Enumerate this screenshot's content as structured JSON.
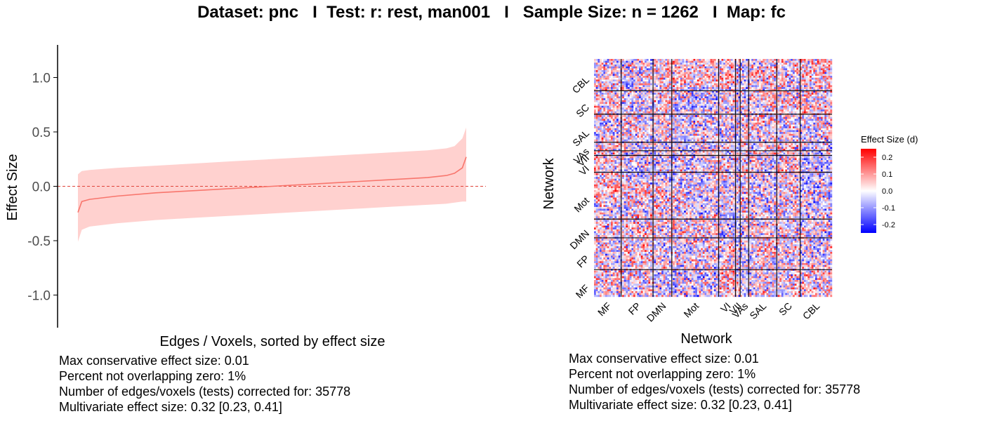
{
  "title": "Dataset: pnc   I  Test: r: rest, man001   I   Sample Size: n = 1262   I  Map: fc",
  "chart_data": [
    {
      "type": "line",
      "xlabel": "Edges / Voxels, sorted by effect size",
      "ylabel": "Effect Size",
      "ylim": [
        -1.3,
        1.3
      ],
      "yticks": [
        1.0,
        0.5,
        0.0,
        -0.5,
        -1.0
      ],
      "ytick_labels": [
        "1.0",
        "0.5",
        "0.0",
        "-0.5",
        "-1.0"
      ],
      "n_points": 35778,
      "reference_line_y": 0,
      "series": [
        {
          "color": "#f8766d",
          "x": [
            0,
            0.01,
            0.03,
            0.1,
            0.2,
            0.3,
            0.4,
            0.5,
            0.6,
            0.7,
            0.8,
            0.9,
            0.95,
            0.97,
            0.99,
            1.0
          ],
          "y": [
            -0.24,
            -0.14,
            -0.12,
            -0.09,
            -0.06,
            -0.04,
            -0.02,
            0.0,
            0.02,
            0.04,
            0.06,
            0.08,
            0.1,
            0.12,
            0.17,
            0.27
          ],
          "ci_lower": [
            -0.51,
            -0.4,
            -0.37,
            -0.34,
            -0.31,
            -0.29,
            -0.27,
            -0.25,
            -0.23,
            -0.21,
            -0.19,
            -0.17,
            -0.16,
            -0.15,
            -0.14,
            -0.14
          ],
          "ci_upper": [
            0.11,
            0.14,
            0.15,
            0.17,
            0.19,
            0.21,
            0.23,
            0.25,
            0.27,
            0.29,
            0.31,
            0.33,
            0.35,
            0.37,
            0.44,
            0.54
          ],
          "band_color": "#ffd1cf"
        }
      ],
      "stats": [
        "Max conservative effect size: 0.01",
        "Percent not overlapping zero: 1%",
        "Number of edges/voxels (tests) corrected for: 35778",
        "Multivariate effect size: 0.32 [0.23, 0.41]"
      ]
    },
    {
      "type": "heatmap",
      "xlabel": "Network",
      "ylabel": "Network",
      "networks": [
        "MF",
        "FP",
        "DMN",
        "Mot",
        "VI",
        "VII",
        "VAs",
        "SAL",
        "SC",
        "CBL"
      ],
      "network_sizes": [
        29,
        34,
        20,
        50,
        18,
        5,
        9,
        30,
        25,
        34
      ],
      "legend_title": "Effect Size (d)",
      "color_scale": {
        "low": "#0000ff",
        "mid": "#ffffff",
        "high": "#ff0000",
        "min": -0.25,
        "max": 0.25
      },
      "legend_ticks": [
        0.2,
        0.1,
        0.0,
        -0.1,
        -0.2
      ],
      "legend_tick_labels": [
        "0.2",
        "0.1",
        "0.0",
        "-0.1",
        "-0.2"
      ],
      "stats": [
        "Max conservative effect size: 0.01",
        "Percent not overlapping zero: 1%",
        "Number of edges/voxels (tests) corrected for: 35778",
        "Multivariate effect size: 0.32 [0.23, 0.41]"
      ]
    }
  ]
}
